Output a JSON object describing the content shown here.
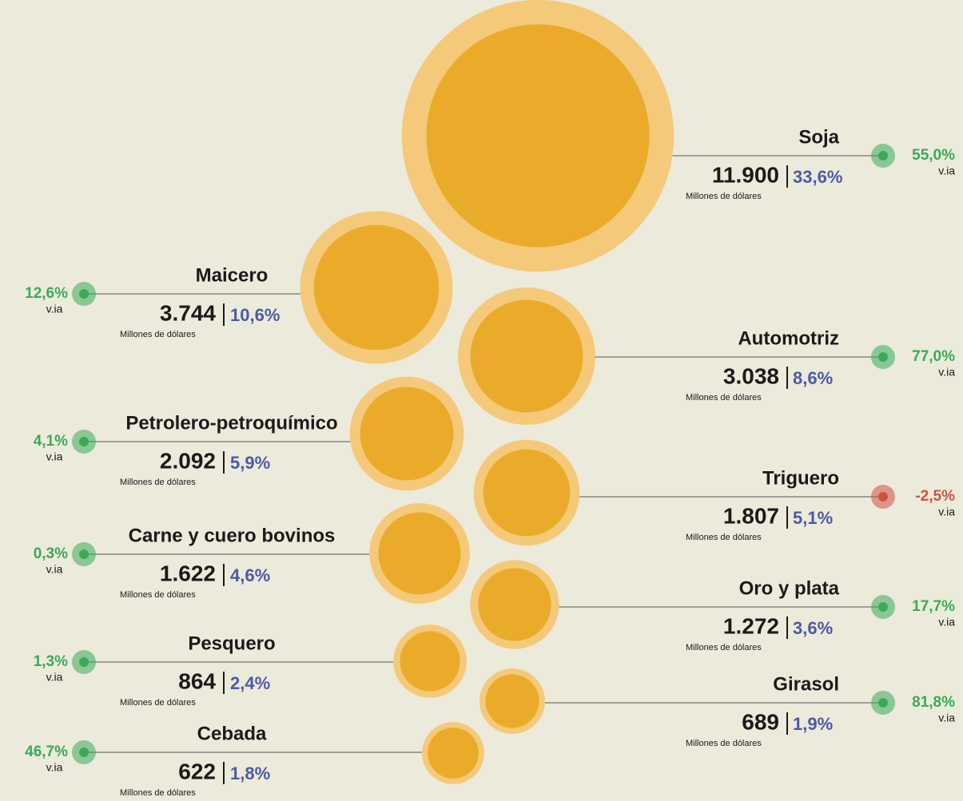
{
  "chart_data": {
    "type": "bubble",
    "categories": [
      "Soja",
      "Maicero",
      "Automotriz",
      "Petrolero-petroquímico",
      "Triguero",
      "Carne y cuero bovinos",
      "Oro y plata",
      "Pesquero",
      "Girasol",
      "Cebada"
    ],
    "values": [
      11900,
      3744,
      3038,
      2092,
      1807,
      1622,
      1272,
      864,
      689,
      622
    ],
    "value_labels": [
      "11.900",
      "3.744",
      "3.038",
      "2.092",
      "1.807",
      "1.622",
      "1.272",
      "864",
      "689",
      "622"
    ],
    "shares": [
      33.6,
      10.6,
      8.6,
      5.9,
      5.1,
      4.6,
      3.6,
      2.4,
      1.9,
      1.8
    ],
    "share_labels": [
      "33,6%",
      "10,6%",
      "8,6%",
      "5,9%",
      "5,1%",
      "4,6%",
      "3,6%",
      "2,4%",
      "1,9%",
      "1,8%"
    ],
    "changes": [
      55.0,
      12.6,
      77.0,
      4.1,
      -2.5,
      0.3,
      17.7,
      1.3,
      81.8,
      46.7
    ],
    "change_labels": [
      "55,0%",
      "12,6%",
      "77,0%",
      "4,1%",
      "-2,5%",
      "0,3%",
      "17,7%",
      "1,3%",
      "81,8%",
      "46,7%"
    ],
    "unit": "Millones de dólares",
    "change_unit": "v.ia",
    "bubble_color": "#ebab2a",
    "ring_color": "#f5c97a",
    "positive_color": "#3aaa5a",
    "negative_color": "#d0503f"
  }
}
